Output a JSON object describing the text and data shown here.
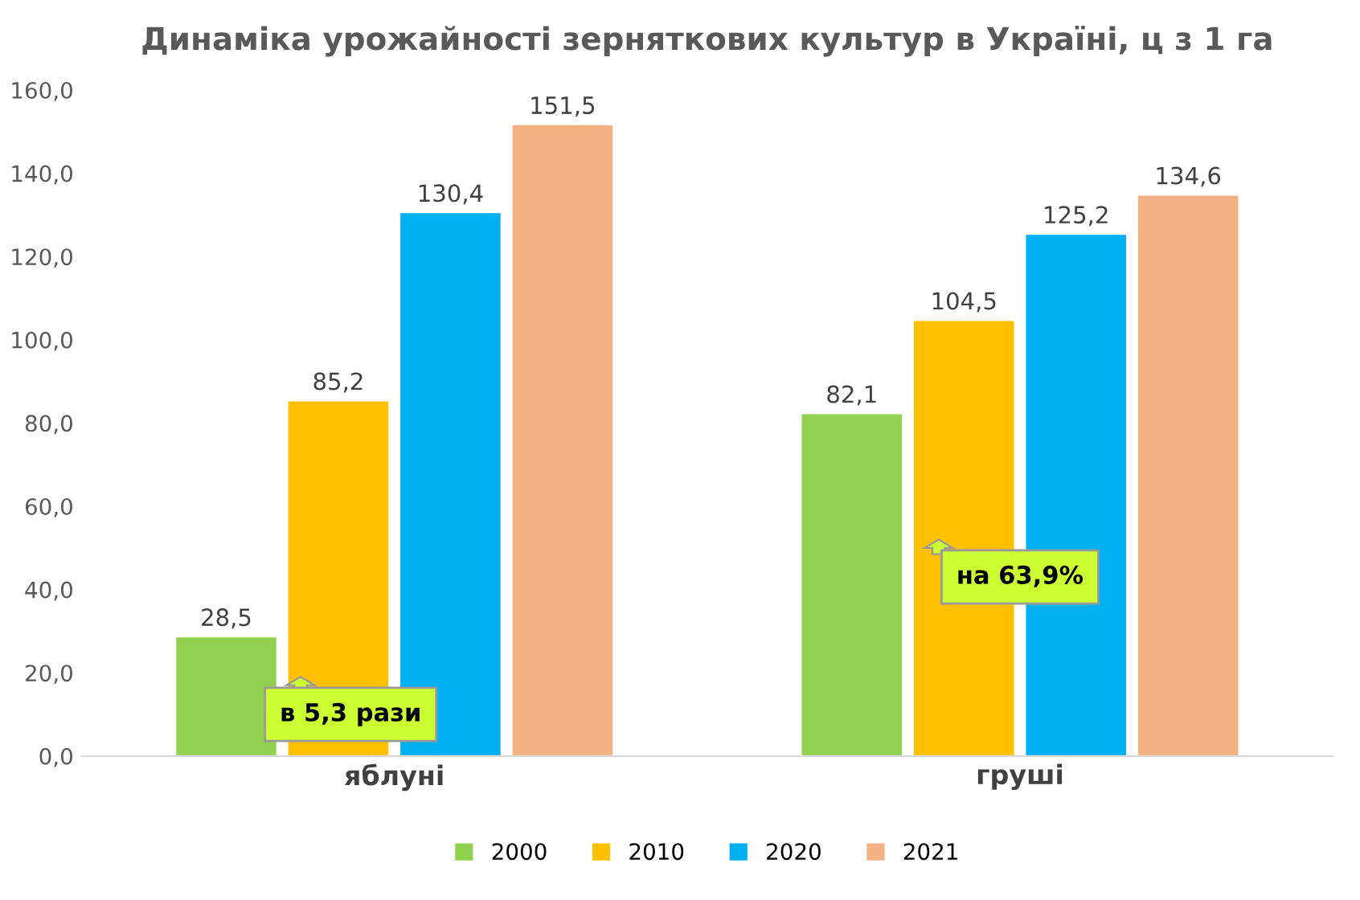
{
  "chart_data": {
    "type": "bar",
    "title": "Динаміка урожайності зерняткових культур в Україні, ц з 1 га",
    "categories": [
      "яблуні",
      "груші"
    ],
    "series": [
      {
        "name": "2000",
        "color": "#92d050",
        "values": [
          28.5,
          82.1
        ],
        "value_labels": [
          "28,5",
          "82,1"
        ]
      },
      {
        "name": "2010",
        "color": "#ffc000",
        "values": [
          85.2,
          104.5
        ],
        "value_labels": [
          "85,2",
          "104,5"
        ]
      },
      {
        "name": "2020",
        "color": "#00b0f0",
        "values": [
          130.4,
          125.2
        ],
        "value_labels": [
          "130,4",
          "125,2"
        ]
      },
      {
        "name": "2021",
        "color": "#f4b183",
        "values": [
          151.5,
          134.6
        ],
        "value_labels": [
          "151,5",
          "134,6"
        ]
      }
    ],
    "ylim": [
      0,
      160
    ],
    "yticks": [
      {
        "value": 0,
        "label": "0,0"
      },
      {
        "value": 20,
        "label": "20,0"
      },
      {
        "value": 40,
        "label": "40,0"
      },
      {
        "value": 60,
        "label": "60,0"
      },
      {
        "value": 80,
        "label": "80,0"
      },
      {
        "value": 100,
        "label": "100,0"
      },
      {
        "value": 120,
        "label": "120,0"
      },
      {
        "value": 140,
        "label": "140,0"
      },
      {
        "value": 160,
        "label": "160,0"
      }
    ],
    "annotations": [
      "в 5,3 рази",
      "на 63,9%"
    ],
    "grid": false,
    "legend": "bottom"
  }
}
